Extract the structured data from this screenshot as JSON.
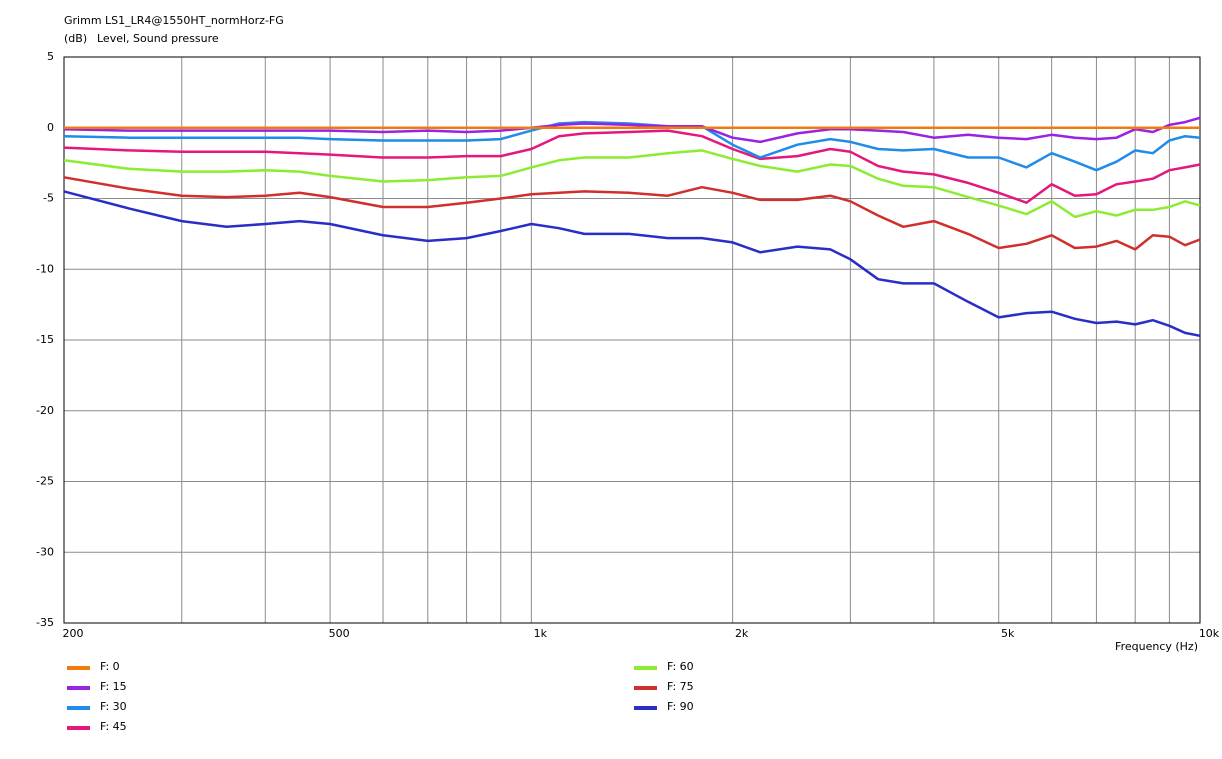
{
  "chart_data": {
    "type": "line",
    "title": "Grimm LS1_LR4@1550HT_normHorz-FG",
    "y_unit": "(dB)",
    "y_label": "Level, Sound pressure",
    "x_label": "Frequency  (Hz)",
    "x_log": true,
    "grid": true,
    "legend": "bottom",
    "xlim": [
      200,
      10000
    ],
    "ylim": [
      -35,
      5
    ],
    "xticks": [
      200,
      500,
      {
        "value": 1000,
        "label": "1k"
      },
      {
        "value": 2000,
        "label": "2k"
      },
      {
        "value": 5000,
        "label": "5k"
      },
      {
        "value": 10000,
        "label": "10k"
      }
    ],
    "xminorticks": [
      300,
      400,
      600,
      700,
      800,
      900,
      3000,
      4000,
      6000,
      7000,
      8000,
      9000
    ],
    "yticks": [
      5,
      0,
      -5,
      -10,
      -15,
      -20,
      -25,
      -30,
      -35
    ],
    "x": [
      200,
      250,
      300,
      350,
      400,
      450,
      500,
      600,
      700,
      800,
      900,
      1000,
      1100,
      1200,
      1400,
      1600,
      1800,
      2000,
      2200,
      2500,
      2800,
      3000,
      3300,
      3600,
      4000,
      4500,
      5000,
      5500,
      6000,
      6500,
      7000,
      7500,
      8000,
      8500,
      9000,
      9500,
      10000
    ],
    "series": [
      {
        "name": "F: 0",
        "color": "#ee7d0e",
        "values": [
          0,
          0,
          0,
          0,
          0,
          0,
          0,
          0,
          0,
          0,
          0,
          0,
          0,
          0,
          0,
          0,
          0,
          0,
          0,
          0,
          0,
          0,
          0,
          0,
          0,
          0,
          0,
          0,
          0,
          0,
          0,
          0,
          0,
          0,
          0,
          0,
          0
        ]
      },
      {
        "name": "F: 15",
        "color": "#9a22e0",
        "values": [
          -0.1,
          -0.2,
          -0.2,
          -0.2,
          -0.2,
          -0.2,
          -0.2,
          -0.3,
          -0.2,
          -0.3,
          -0.2,
          0,
          0.2,
          0.3,
          0.2,
          0.1,
          0.1,
          -0.7,
          -1.0,
          -0.4,
          -0.1,
          -0.1,
          -0.2,
          -0.3,
          -0.7,
          -0.5,
          -0.7,
          -0.8,
          -0.5,
          -0.7,
          -0.8,
          -0.7,
          -0.1,
          -0.3,
          0.2,
          0.4,
          0.7
        ]
      },
      {
        "name": "F: 30",
        "color": "#1e8ce8",
        "values": [
          -0.6,
          -0.7,
          -0.7,
          -0.7,
          -0.7,
          -0.7,
          -0.8,
          -0.9,
          -0.9,
          -0.9,
          -0.8,
          -0.2,
          0.3,
          0.4,
          0.3,
          0.1,
          0.1,
          -1.2,
          -2.1,
          -1.2,
          -0.8,
          -1.0,
          -1.5,
          -1.6,
          -1.5,
          -2.1,
          -2.1,
          -2.8,
          -1.8,
          -2.4,
          -3.0,
          -2.4,
          -1.6,
          -1.8,
          -0.9,
          -0.6,
          -0.7
        ]
      },
      {
        "name": "F: 45",
        "color": "#e4187c",
        "values": [
          -1.4,
          -1.6,
          -1.7,
          -1.7,
          -1.7,
          -1.8,
          -1.9,
          -2.1,
          -2.1,
          -2.0,
          -2.0,
          -1.5,
          -0.6,
          -0.4,
          -0.3,
          -0.2,
          -0.6,
          -1.5,
          -2.2,
          -2.0,
          -1.5,
          -1.7,
          -2.7,
          -3.1,
          -3.3,
          -3.9,
          -4.6,
          -5.3,
          -4.0,
          -4.8,
          -4.7,
          -4.0,
          -3.8,
          -3.6,
          -3.0,
          -2.8,
          -2.6
        ]
      },
      {
        "name": "F: 60",
        "color": "#8cec32",
        "values": [
          -2.3,
          -2.9,
          -3.1,
          -3.1,
          -3.0,
          -3.1,
          -3.4,
          -3.8,
          -3.7,
          -3.5,
          -3.4,
          -2.8,
          -2.3,
          -2.1,
          -2.1,
          -1.8,
          -1.6,
          -2.2,
          -2.7,
          -3.1,
          -2.6,
          -2.7,
          -3.6,
          -4.1,
          -4.2,
          -4.9,
          -5.5,
          -6.1,
          -5.2,
          -6.3,
          -5.9,
          -6.2,
          -5.8,
          -5.8,
          -5.6,
          -5.2,
          -5.5
        ]
      },
      {
        "name": "F: 75",
        "color": "#d0302c",
        "values": [
          -3.5,
          -4.3,
          -4.8,
          -4.9,
          -4.8,
          -4.6,
          -4.9,
          -5.6,
          -5.6,
          -5.3,
          -5.0,
          -4.7,
          -4.6,
          -4.5,
          -4.6,
          -4.8,
          -4.2,
          -4.6,
          -5.1,
          -5.1,
          -4.8,
          -5.2,
          -6.2,
          -7.0,
          -6.6,
          -7.5,
          -8.5,
          -8.2,
          -7.6,
          -8.5,
          -8.4,
          -8.0,
          -8.6,
          -7.6,
          -7.7,
          -8.3,
          -7.9
        ]
      },
      {
        "name": "F: 90",
        "color": "#2a2ec6",
        "values": [
          -4.5,
          -5.7,
          -6.6,
          -7.0,
          -6.8,
          -6.6,
          -6.8,
          -7.6,
          -8.0,
          -7.8,
          -7.3,
          -6.8,
          -7.1,
          -7.5,
          -7.5,
          -7.8,
          -7.8,
          -8.1,
          -8.8,
          -8.4,
          -8.6,
          -9.3,
          -10.7,
          -11.0,
          -11.0,
          -12.3,
          -13.4,
          -13.1,
          -13.0,
          -13.5,
          -13.8,
          -13.7,
          -13.9,
          -13.6,
          -14.0,
          -14.5,
          -14.7
        ]
      }
    ]
  }
}
